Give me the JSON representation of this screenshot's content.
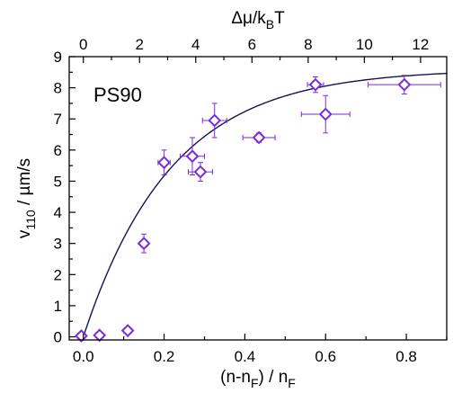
{
  "chart_data": {
    "type": "scatter",
    "panel_label": "PS90",
    "xlabel": {
      "main": "(n-n",
      "sub1": "F",
      "mid": ") / n",
      "sub2": "F"
    },
    "ylabel": {
      "main": "v",
      "sub": "110",
      "rest": " / µm/s"
    },
    "top_xlabel": {
      "main": "Δμ/k",
      "sub": "B",
      "rest": "T"
    },
    "xlim": [
      -0.035,
      0.9
    ],
    "ylim": [
      -0.1,
      9
    ],
    "x_ticks": [
      0.0,
      0.2,
      0.4,
      0.6,
      0.8
    ],
    "x_tick_labels": [
      "0.0",
      "0.2",
      "0.4",
      "0.6",
      "0.8"
    ],
    "y_ticks": [
      0,
      1,
      2,
      3,
      4,
      5,
      6,
      7,
      8,
      9
    ],
    "y_tick_labels": [
      "0",
      "1",
      "2",
      "3",
      "4",
      "5",
      "6",
      "7",
      "8",
      "9"
    ],
    "top_ticks": [
      0,
      2,
      4,
      6,
      8,
      10,
      12
    ],
    "top_tick_labels": [
      "0",
      "2",
      "4",
      "6",
      "8",
      "10",
      "12"
    ],
    "points": [
      {
        "x": -0.005,
        "y": 0.03,
        "xerr": 0.01,
        "yerr": 0.05
      },
      {
        "x": 0.04,
        "y": 0.05,
        "xerr": 0.01,
        "yerr": 0.05
      },
      {
        "x": 0.11,
        "y": 0.2,
        "xerr": 0.01,
        "yerr": 0.1
      },
      {
        "x": 0.15,
        "y": 3.0,
        "xerr": 0.01,
        "yerr": 0.3
      },
      {
        "x": 0.2,
        "y": 5.6,
        "xerr": 0.015,
        "yerr": 0.4
      },
      {
        "x": 0.27,
        "y": 5.8,
        "xerr": 0.03,
        "yerr": 0.6
      },
      {
        "x": 0.29,
        "y": 5.3,
        "xerr": 0.03,
        "yerr": 0.3
      },
      {
        "x": 0.325,
        "y": 6.95,
        "xerr": 0.03,
        "yerr": 0.55
      },
      {
        "x": 0.435,
        "y": 6.4,
        "xerr": 0.04,
        "yerr": 0.15
      },
      {
        "x": 0.575,
        "y": 8.1,
        "xerr": 0.02,
        "yerr": 0.25
      },
      {
        "x": 0.6,
        "y": 7.15,
        "xerr": 0.06,
        "yerr": 0.6
      },
      {
        "x": 0.795,
        "y": 8.1,
        "xerr": 0.09,
        "yerr": 0.3
      }
    ],
    "fit_curve": {
      "vmax": 8.6,
      "k": 4.6
    },
    "colors": {
      "points": "#7a2be0",
      "curve": "#141450",
      "axes": "#000000"
    }
  }
}
